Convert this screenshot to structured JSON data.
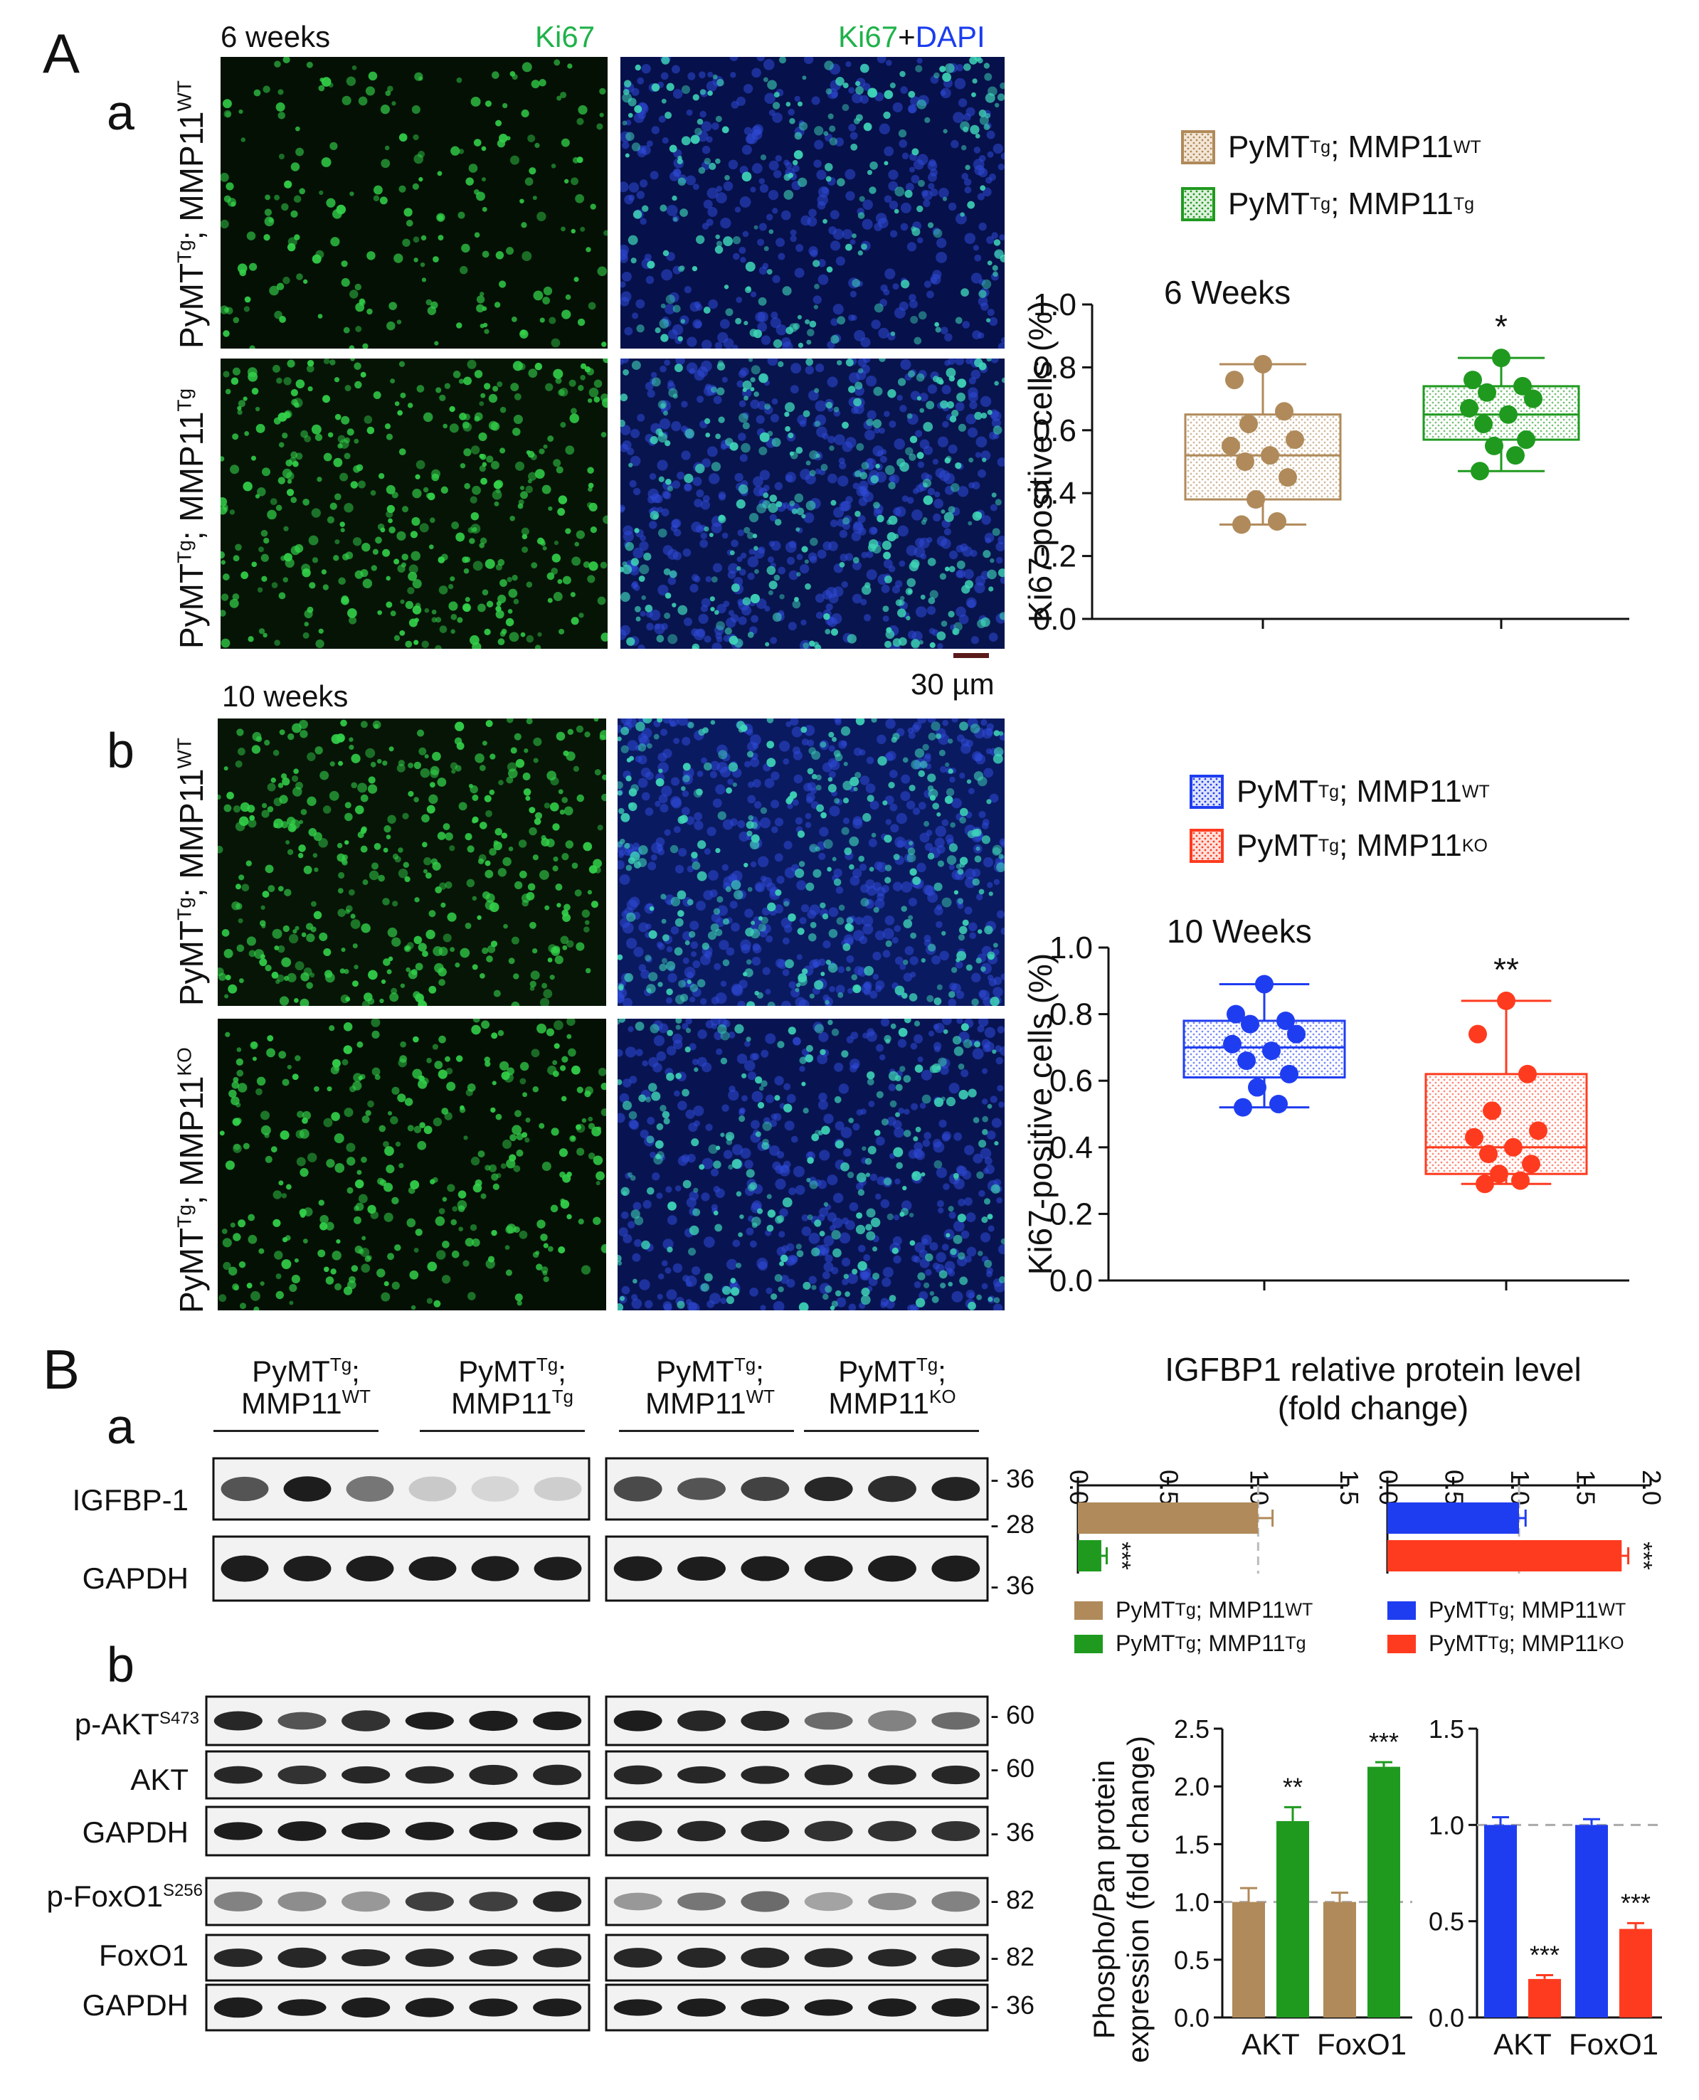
{
  "panels": {
    "A": "A",
    "B": "B",
    "Aa": "a",
    "Ab": "b",
    "Ba": "a",
    "Bb": "b"
  },
  "microscopy": {
    "header_6w": "6 weeks",
    "header_10w": "10 weeks",
    "ki67": "Ki67",
    "ki67_dapi_a": "Ki67",
    "ki67_dapi_plus": "+",
    "ki67_dapi_b": "DAPI",
    "scale": "30 µm",
    "row_labels": {
      "wt_base": "PyMT",
      "tg": "Tg",
      "sep": "; MMP11",
      "wt": "WT",
      "tg2": "Tg",
      "ko": "KO"
    }
  },
  "colors": {
    "wt6": "#b08a5a",
    "tg6": "#1f9a1f",
    "wt10": "#1f3df0",
    "ko10": "#ff3b1f",
    "ki67_green": "#1fb24a",
    "dapi_blue": "#1b3df0"
  },
  "box_a": {
    "title": "6 Weeks",
    "ylabel": "Ki67-positive cells (%)",
    "ticks": [
      "0.0",
      "0.2",
      "0.4",
      "0.6",
      "0.8",
      "1.0"
    ],
    "significance": "*",
    "legend": [
      "PyMT",
      "Tg",
      "; MMP11",
      "WT",
      "PyMT",
      "Tg",
      "; MMP11",
      "Tg"
    ]
  },
  "box_b": {
    "title": "10 Weeks",
    "ylabel": "Ki67-positive cells (%)",
    "ticks": [
      "0.0",
      "0.2",
      "0.4",
      "0.6",
      "0.8",
      "1.0"
    ],
    "significance": "**",
    "legend": [
      "PyMT",
      "Tg",
      "; MMP11",
      "WT",
      "PyMT",
      "Tg",
      "; MMP11",
      "KO"
    ]
  },
  "chart_data": [
    {
      "type": "box",
      "title": "6 Weeks",
      "ylabel": "Ki67-positive cells (%)",
      "ylim": [
        0,
        1.0
      ],
      "series": [
        {
          "name": "PyMTTg; MMP11WT",
          "min": 0.3,
          "q1": 0.38,
          "median": 0.52,
          "q3": 0.65,
          "max": 0.81,
          "points": [
            0.81,
            0.76,
            0.66,
            0.62,
            0.57,
            0.55,
            0.52,
            0.5,
            0.45,
            0.38,
            0.31,
            0.3
          ]
        },
        {
          "name": "PyMTTg; MMP11Tg",
          "min": 0.47,
          "q1": 0.57,
          "median": 0.65,
          "q3": 0.74,
          "max": 0.83,
          "points": [
            0.83,
            0.76,
            0.74,
            0.72,
            0.7,
            0.67,
            0.65,
            0.62,
            0.57,
            0.55,
            0.52,
            0.47
          ]
        }
      ],
      "annotation": "*"
    },
    {
      "type": "box",
      "title": "10 Weeks",
      "ylabel": "Ki67-positive cells (%)",
      "ylim": [
        0,
        1.0
      ],
      "series": [
        {
          "name": "PyMTTg; MMP11WT",
          "min": 0.52,
          "q1": 0.61,
          "median": 0.7,
          "q3": 0.78,
          "max": 0.89,
          "points": [
            0.89,
            0.8,
            0.78,
            0.77,
            0.74,
            0.71,
            0.69,
            0.66,
            0.62,
            0.58,
            0.53,
            0.52
          ]
        },
        {
          "name": "PyMTTg; MMP11KO",
          "min": 0.29,
          "q1": 0.32,
          "median": 0.4,
          "q3": 0.62,
          "max": 0.84,
          "points": [
            0.84,
            0.74,
            0.62,
            0.51,
            0.45,
            0.43,
            0.4,
            0.38,
            0.35,
            0.32,
            0.3,
            0.29
          ]
        }
      ],
      "annotation": "**"
    },
    {
      "type": "bar",
      "title": "IGFBP1 relative protein level (fold change)",
      "orientation": "horizontal",
      "xlim": [
        0,
        1.5
      ],
      "ticks": [
        "0.0",
        "0.5",
        "1.0",
        "1.5"
      ],
      "series": [
        {
          "name": "PyMTTg; MMP11WT",
          "values": [
            1.0
          ],
          "error": [
            0.08
          ]
        },
        {
          "name": "PyMTTg; MMP11Tg",
          "values": [
            0.13
          ],
          "error": [
            0.03
          ]
        }
      ],
      "annotation": "***"
    },
    {
      "type": "bar",
      "title": "IGFBP1 relative protein level (fold change)",
      "orientation": "horizontal",
      "xlim": [
        0,
        2.0
      ],
      "ticks": [
        "0.0",
        "0.5",
        "1.0",
        "1.5",
        "2.0"
      ],
      "series": [
        {
          "name": "PyMTTg; MMP11WT",
          "values": [
            1.0
          ],
          "error": [
            0.05
          ]
        },
        {
          "name": "PyMTTg; MMP11KO",
          "values": [
            1.78
          ],
          "error": [
            0.05
          ]
        }
      ],
      "annotation": "***"
    },
    {
      "type": "bar",
      "ylabel": "Phospho/Pan protein expression (fold change)",
      "categories": [
        "AKT",
        "FoxO1"
      ],
      "ylim": [
        0,
        2.5
      ],
      "ticks": [
        "0.0",
        "0.5",
        "1.0",
        "1.5",
        "2.0",
        "2.5"
      ],
      "series": [
        {
          "name": "PyMTTg; MMP11WT",
          "values": [
            1.0,
            1.0
          ],
          "error": [
            0.12,
            0.08
          ]
        },
        {
          "name": "PyMTTg; MMP11Tg",
          "values": [
            1.7,
            2.17
          ],
          "error": [
            0.12,
            0.04
          ]
        }
      ],
      "annotations": [
        "**",
        "***"
      ]
    },
    {
      "type": "bar",
      "categories": [
        "AKT",
        "FoxO1"
      ],
      "ylim": [
        0,
        1.5
      ],
      "ticks": [
        "0.0",
        "0.5",
        "1.0",
        "1.5"
      ],
      "series": [
        {
          "name": "PyMTTg; MMP11WT",
          "values": [
            1.0,
            1.0
          ],
          "error": [
            0.04,
            0.03
          ]
        },
        {
          "name": "PyMTTg; MMP11KO",
          "values": [
            0.2,
            0.46
          ],
          "error": [
            0.02,
            0.03
          ]
        }
      ],
      "annotations": [
        "***",
        "***"
      ]
    }
  ],
  "blots": {
    "groups": [
      {
        "l1a": "PyMT",
        "l1b": "Tg",
        "l1c": ";",
        "l2a": "MMP11",
        "l2b": "WT"
      },
      {
        "l1a": "PyMT",
        "l1b": "Tg",
        "l1c": ";",
        "l2a": "MMP11",
        "l2b": "Tg"
      },
      {
        "l1a": "PyMT",
        "l1b": "Tg",
        "l1c": ";",
        "l2a": "MMP11",
        "l2b": "WT"
      },
      {
        "l1a": "PyMT",
        "l1b": "Tg",
        "l1c": ";",
        "l2a": "MMP11",
        "l2b": "KO"
      }
    ],
    "rows_a": [
      {
        "label": "IGFBP-1",
        "mw": [
          "- 36",
          "- 28"
        ]
      },
      {
        "label": "GAPDH",
        "mw": [
          "- 36"
        ]
      }
    ],
    "rows_b": [
      {
        "label": "p-AKT",
        "sup": "S473",
        "mw": [
          "- 60"
        ]
      },
      {
        "label": "AKT",
        "sup": "",
        "mw": [
          "- 60"
        ]
      },
      {
        "label": "GAPDH",
        "sup": "",
        "mw": [
          "- 36"
        ]
      },
      {
        "label": "p-FoxO1",
        "sup": "S256",
        "mw": [
          "- 82"
        ]
      },
      {
        "label": "FoxO1",
        "sup": "",
        "mw": [
          "- 82"
        ]
      },
      {
        "label": "GAPDH",
        "sup": "",
        "mw": [
          "- 36"
        ]
      }
    ]
  },
  "igfbp_chart": {
    "title1": "IGFBP1 relative protein level",
    "title2": "(fold change)",
    "legend_left": [
      [
        "PyMT",
        "Tg",
        "; MMP11",
        "WT"
      ],
      [
        "PyMT",
        "Tg",
        "; MMP11",
        "Tg"
      ]
    ],
    "legend_right": [
      [
        "PyMT",
        "Tg",
        "; MMP11",
        "WT"
      ],
      [
        "PyMT",
        "Tg",
        "; MMP11",
        "KO"
      ]
    ]
  },
  "phospho_chart": {
    "ylabel1": "Phospho/Pan protein",
    "ylabel2": "expression (fold change)",
    "categories": [
      "AKT",
      "FoxO1"
    ]
  }
}
